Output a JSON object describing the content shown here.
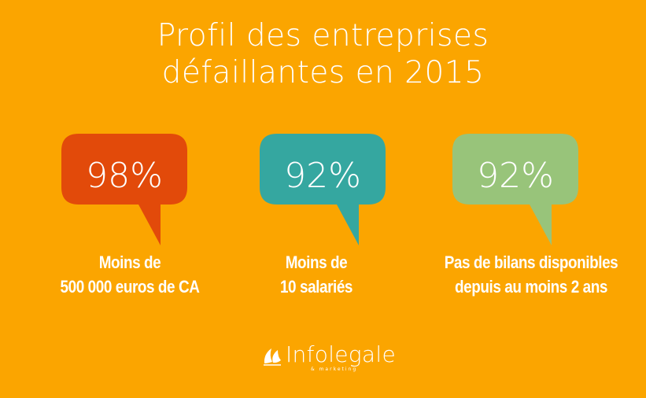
{
  "title": {
    "line1": "Profil des entreprises",
    "line2": "défaillantes en 2015"
  },
  "stats": [
    {
      "value": "98%",
      "caption_line1": "Moins de",
      "caption_line2": "500 000 euros de CA",
      "color": "#E24A0A"
    },
    {
      "value": "92%",
      "caption_line1": "Moins de",
      "caption_line2": "10 salariés",
      "color": "#35A7A0"
    },
    {
      "value": "92%",
      "caption_line1": "Pas de bilans disponibles",
      "caption_line2": "depuis au moins 2 ans",
      "color": "#98C47A"
    }
  ],
  "brand": {
    "name": "Infolegale",
    "tagline": "& marketing",
    "icon": "leaf-logo-icon"
  },
  "colors": {
    "background": "#FBA500"
  }
}
